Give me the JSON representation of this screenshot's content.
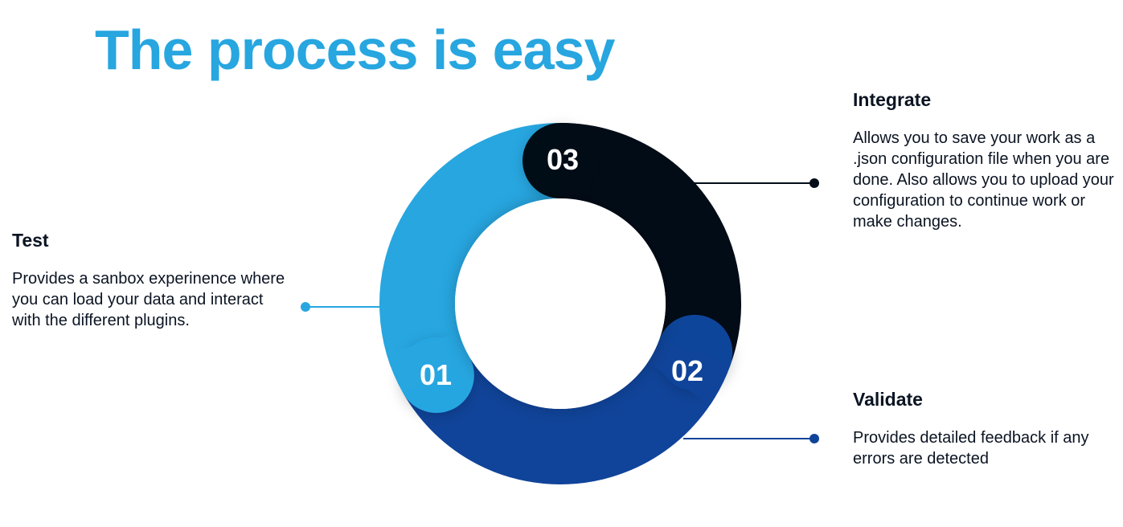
{
  "title": "The process is easy",
  "colors": {
    "title": "#27a6e0",
    "step_01": "#27a6e0",
    "step_02": "#10449a",
    "step_03": "#020c17",
    "text": "#0b1422"
  },
  "steps": [
    {
      "number": "01",
      "heading": "Test",
      "description": "Provides a sanbox experinence where you can load your data and interact with the different plugins."
    },
    {
      "number": "02",
      "heading": "Validate",
      "description": "Provides detailed feedback if any errors are detected"
    },
    {
      "number": "03",
      "heading": "Integrate",
      "description": "Allows you to save your work as a .json configuration file when you are done. Also allows you to  upload your configuration to continue work or make changes."
    }
  ]
}
